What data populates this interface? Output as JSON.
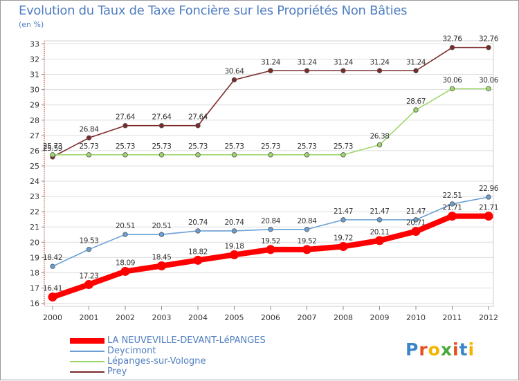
{
  "title": "Evolution du Taux de Taxe Foncière sur les Propriétés Non Bâties",
  "unit_label": "(en %)",
  "logo": {
    "letters": [
      "P",
      "r",
      "o",
      "x",
      "i",
      "t",
      "i"
    ],
    "colors": [
      "#3a86c8",
      "#e8501e",
      "#f2b400",
      "#49a83a",
      "#e8501e",
      "#3a86c8",
      "#f2b400"
    ]
  },
  "chart_data": {
    "type": "line",
    "title": "Evolution du Taux de Taxe Foncière sur les Propriétés Non Bâties",
    "ylabel": "(en %)",
    "xlabel": "",
    "x": [
      "2000",
      "2001",
      "2002",
      "2003",
      "2004",
      "2005",
      "2006",
      "2007",
      "2008",
      "2009",
      "2010",
      "2011",
      "2012"
    ],
    "yticks": [
      16,
      17,
      18,
      19,
      20,
      21,
      22,
      23,
      24,
      25,
      26,
      27,
      28,
      29,
      30,
      31,
      32,
      33
    ],
    "ylim": [
      15.8,
      33.2
    ],
    "series": [
      {
        "name": "Prey",
        "color": "#7b2a2a",
        "values": [
          25.59,
          26.84,
          27.64,
          27.64,
          27.64,
          30.64,
          31.24,
          31.24,
          31.24,
          31.24,
          31.24,
          32.76,
          32.76
        ],
        "labels": [
          "25.59",
          "26.84",
          "27.64",
          "27.64",
          "27.64",
          "30.64",
          "31.24",
          "31.24",
          "31.24",
          "31.24",
          "31.24",
          "32.76",
          "32.76"
        ]
      },
      {
        "name": "Lépanges-sur-Vologne",
        "color": "#9ed86b",
        "values": [
          25.73,
          25.73,
          25.73,
          25.73,
          25.73,
          25.73,
          25.73,
          25.73,
          25.73,
          26.38,
          28.67,
          30.06,
          30.06
        ],
        "labels": [
          "25.73",
          "25.73",
          "25.73",
          "25.73",
          "25.73",
          "25.73",
          "25.73",
          "25.73",
          "25.73",
          "26.38",
          "28.67",
          "30.06",
          "30.06"
        ]
      },
      {
        "name": "Deycimont",
        "color": "#6a9fd4",
        "values": [
          18.42,
          19.53,
          20.51,
          20.51,
          20.74,
          20.74,
          20.84,
          20.84,
          21.47,
          21.47,
          21.47,
          22.51,
          22.96
        ],
        "labels": [
          "18.42",
          "19.53",
          "20.51",
          "20.51",
          "20.74",
          "20.74",
          "20.84",
          "20.84",
          "21.47",
          "21.47",
          "21.47",
          "22.51",
          "22.96"
        ]
      },
      {
        "name": "LA NEUVEVILLE-DEVANT-LéPANGES",
        "color": "#ff0000",
        "values": [
          16.41,
          17.23,
          18.09,
          18.45,
          18.82,
          19.18,
          19.52,
          19.52,
          19.72,
          20.11,
          20.71,
          21.71,
          21.71
        ],
        "labels": [
          "16.41",
          "17.23",
          "18.09",
          "18.45",
          "18.82",
          "19.18",
          "19.52",
          "19.52",
          "19.72",
          "20.11",
          "20.71",
          "21.71",
          "21.71"
        ]
      }
    ],
    "legend": [
      {
        "label": "LA NEUVEVILLE-DEVANT-LéPANGES",
        "color": "#ff0000",
        "thick": true
      },
      {
        "label": "Deycimont",
        "color": "#6a9fd4",
        "thick": false
      },
      {
        "label": "Lépanges-sur-Vologne",
        "color": "#9ed86b",
        "thick": false
      },
      {
        "label": "Prey",
        "color": "#7b2a2a",
        "thick": false
      }
    ]
  }
}
